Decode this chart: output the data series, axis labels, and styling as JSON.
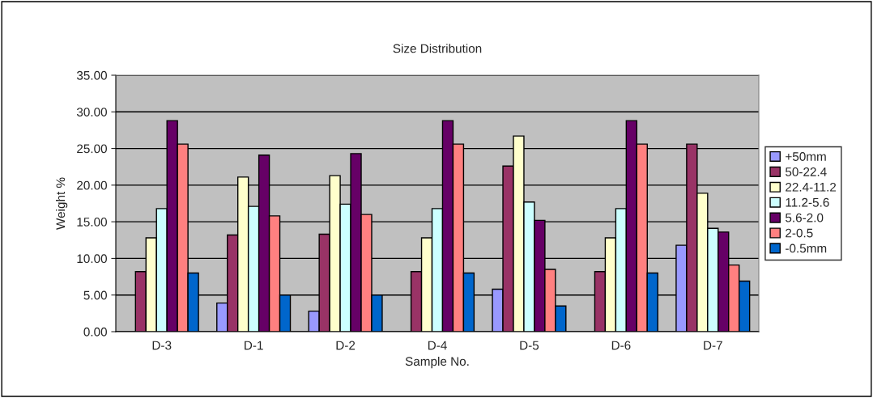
{
  "chart_data": {
    "type": "bar",
    "title": "Size Distribution",
    "xlabel": "Sample No.",
    "ylabel": "Weight %",
    "categories": [
      "D-3",
      "D-1",
      "D-2",
      "D-4",
      "D-5",
      "D-6",
      "D-7"
    ],
    "series": [
      {
        "name": "+50mm",
        "color": "#9999ff",
        "values": [
          null,
          3.9,
          2.8,
          null,
          5.8,
          null,
          11.8
        ]
      },
      {
        "name": "50-22.4",
        "color": "#993366",
        "values": [
          8.2,
          13.2,
          13.3,
          8.2,
          22.6,
          8.2,
          25.6
        ]
      },
      {
        "name": "22.4-11.2",
        "color": "#ffffcc",
        "values": [
          12.8,
          21.1,
          21.3,
          12.8,
          26.7,
          12.8,
          18.9
        ]
      },
      {
        "name": "11.2-5.6",
        "color": "#ccffff",
        "values": [
          16.8,
          17.1,
          17.4,
          16.8,
          17.7,
          16.8,
          14.1
        ]
      },
      {
        "name": "5.6-2.0",
        "color": "#660066",
        "values": [
          28.8,
          24.1,
          24.3,
          28.8,
          15.2,
          28.8,
          13.6
        ]
      },
      {
        "name": "2-0.5",
        "color": "#ff8080",
        "values": [
          25.6,
          15.8,
          16.0,
          25.6,
          8.5,
          25.6,
          9.1
        ]
      },
      {
        "name": "-0.5mm",
        "color": "#0066cc",
        "values": [
          8.0,
          5.0,
          5.0,
          8.0,
          3.5,
          8.0,
          6.9
        ]
      }
    ],
    "ylim": [
      0,
      35
    ],
    "yticks": [
      {
        "value": 0,
        "label": "0.00"
      },
      {
        "value": 5,
        "label": "5.00"
      },
      {
        "value": 10,
        "label": "10.00"
      },
      {
        "value": 15,
        "label": "15.00"
      },
      {
        "value": 20,
        "label": "20.00"
      },
      {
        "value": 25,
        "label": "25.00"
      },
      {
        "value": 30,
        "label": "30.00"
      },
      {
        "value": 35,
        "label": "35.00"
      }
    ],
    "grid": "y",
    "legend": "right"
  }
}
